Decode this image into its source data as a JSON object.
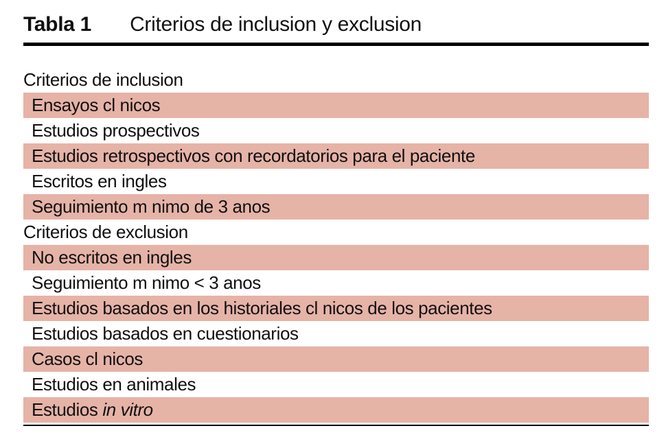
{
  "colors": {
    "row_shade": "#e6b3a7",
    "rule": "#000000",
    "text": "#101010",
    "background": "#ffffff"
  },
  "table": {
    "label": "Tabla 1",
    "title": "Criterios de inclusion y exclusion",
    "rows": [
      {
        "text": "Criterios de inclusion",
        "type": "section",
        "shaded": false
      },
      {
        "text": "Ensayos cl nicos",
        "type": "item",
        "shaded": true
      },
      {
        "text": "Estudios prospectivos",
        "type": "item",
        "shaded": false
      },
      {
        "text": "Estudios retrospectivos con recordatorios para el paciente",
        "type": "item",
        "shaded": true
      },
      {
        "text": "Escritos en ingles",
        "type": "item",
        "shaded": false
      },
      {
        "text": "Seguimiento m nimo de 3 anos",
        "type": "item",
        "shaded": true
      },
      {
        "text": "Criterios de exclusion",
        "type": "section",
        "shaded": false
      },
      {
        "text": "No escritos en ingles",
        "type": "item",
        "shaded": true
      },
      {
        "text": "Seguimiento m nimo < 3 anos",
        "type": "item",
        "shaded": false
      },
      {
        "text": "Estudios basados en los historiales cl nicos de los pacientes",
        "type": "item",
        "shaded": true
      },
      {
        "text": "Estudios basados en cuestionarios",
        "type": "item",
        "shaded": false
      },
      {
        "text": "Casos cl nicos",
        "type": "item",
        "shaded": true
      },
      {
        "text": "Estudios en animales",
        "type": "item",
        "shaded": false
      },
      {
        "text": "Estudios ",
        "italic": "in vitro",
        "type": "item",
        "shaded": true
      }
    ]
  }
}
